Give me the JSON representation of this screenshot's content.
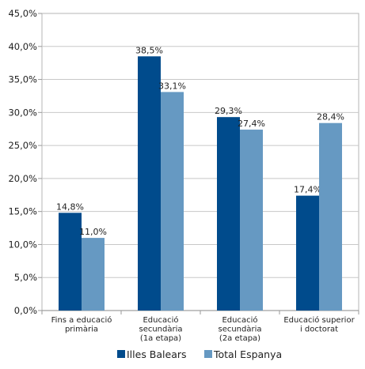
{
  "chart_data": {
    "type": "bar",
    "title": "",
    "xlabel": "",
    "ylabel": "",
    "categories": [
      [
        "Fins a educació",
        "primària"
      ],
      [
        "Educació",
        "secundària",
        "(1a etapa)"
      ],
      [
        "Educació",
        "secundària",
        "(2a etapa)"
      ],
      [
        "Educació superior",
        "i doctorat"
      ]
    ],
    "series": [
      {
        "name": "Illes Balears",
        "color": "#004b8c",
        "values": [
          14.8,
          38.5,
          29.3,
          17.4
        ],
        "labels": [
          "14,8%",
          "38,5%",
          "29,3%",
          "17,4%"
        ]
      },
      {
        "name": "Total Espanya",
        "color": "#6699c2",
        "values": [
          11.0,
          33.1,
          27.4,
          28.4
        ],
        "labels": [
          "11,0%",
          "33,1%",
          "27,4%",
          "28,4%"
        ]
      }
    ],
    "ylim": [
      0,
      45
    ],
    "yticks": [
      0,
      5,
      10,
      15,
      20,
      25,
      30,
      35,
      40,
      45
    ],
    "ytick_labels": [
      "0,0%",
      "5,0%",
      "10,0%",
      "15,0%",
      "20,0%",
      "25,0%",
      "30,0%",
      "35,0%",
      "40,0%",
      "45,0%"
    ],
    "grid": "horizontal",
    "legend_position": "bottom"
  }
}
